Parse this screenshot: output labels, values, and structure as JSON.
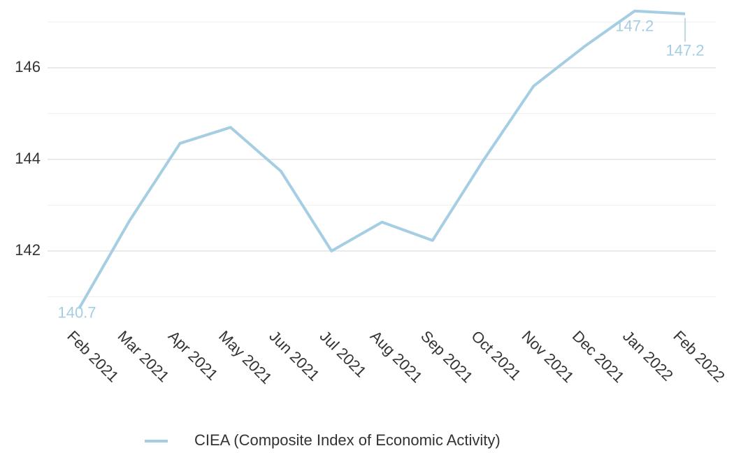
{
  "chart_data": {
    "type": "line",
    "categories": [
      "Feb 2021",
      "Mar 2021",
      "Apr 2021",
      "May 2021",
      "Jun 2021",
      "Jul 2021",
      "Aug 2021",
      "Sep 2021",
      "Oct 2021",
      "Nov 2021",
      "Dec 2021",
      "Jan 2022",
      "Feb 2022"
    ],
    "series": [
      {
        "name": "CIEA (Composite Index of Economic Activity)",
        "color": "#a6cee3",
        "values": [
          140.74,
          142.66,
          144.35,
          144.7,
          143.74,
          142.0,
          142.63,
          142.23,
          143.97,
          145.6,
          146.46,
          147.24,
          147.18
        ],
        "value_labels": [
          "140.7",
          null,
          null,
          null,
          null,
          null,
          null,
          null,
          null,
          null,
          null,
          "147.2",
          "147.2"
        ]
      }
    ],
    "ylim": [
      140.6,
      147.35
    ],
    "yticks": [
      142,
      144,
      146
    ],
    "y_minor_ticks": [
      141,
      143,
      145,
      147
    ],
    "grid": true,
    "legend": "bottom"
  }
}
